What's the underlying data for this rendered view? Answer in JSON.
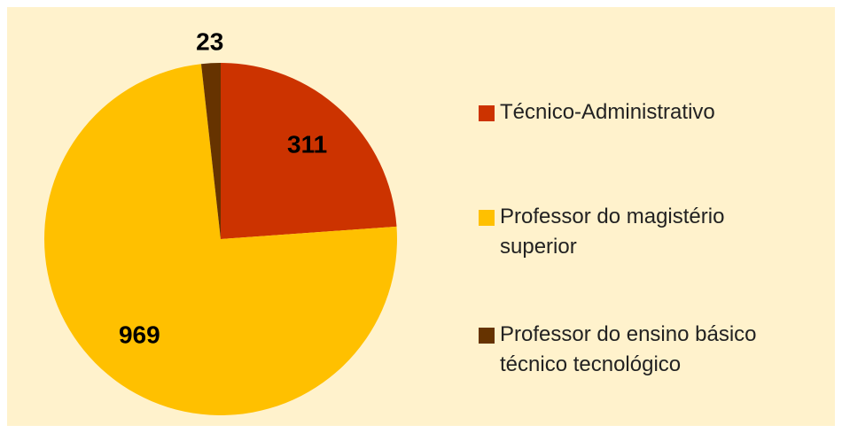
{
  "chart_data": {
    "type": "pie",
    "categories": [
      "Técnico-Administrativo",
      "Professor do magistério superior",
      "Professor do ensino básico técnico tecnológico"
    ],
    "values": [
      311,
      969,
      23
    ],
    "colors": [
      "#cc3300",
      "#ffc000",
      "#663300"
    ],
    "legend": "right"
  }
}
